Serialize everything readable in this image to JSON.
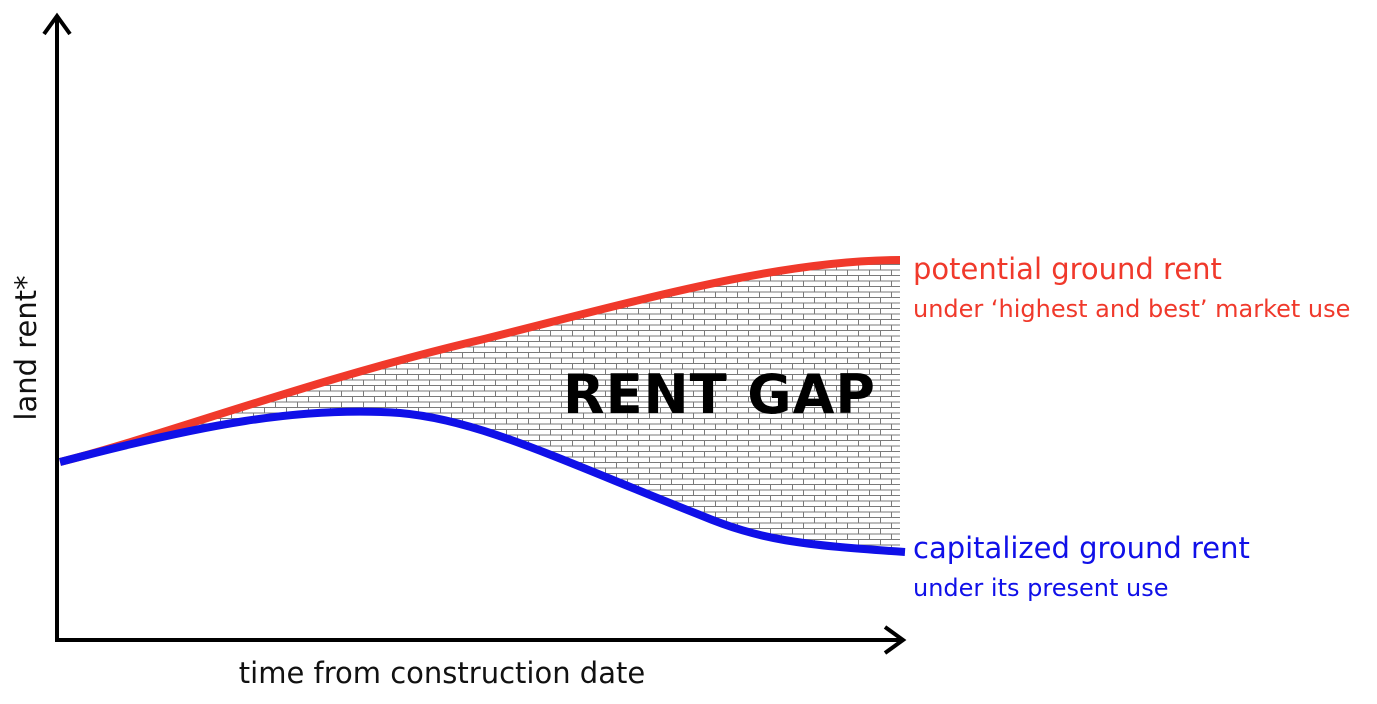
{
  "axes": {
    "y_label": "land rent*",
    "x_label": "time from construction date"
  },
  "curves": {
    "potential": {
      "label": "potential ground rent",
      "sublabel": "under ‘highest and best’ market use",
      "color": "#f0392b"
    },
    "capitalized": {
      "label": "capitalized ground rent",
      "sublabel": "under its present use",
      "color": "#1010e8"
    }
  },
  "gap": {
    "label": "RENT GAP",
    "pattern": "brick-hatch"
  },
  "colors": {
    "axis": "#000000",
    "gap_pattern_line": "#7a7a7a"
  }
}
